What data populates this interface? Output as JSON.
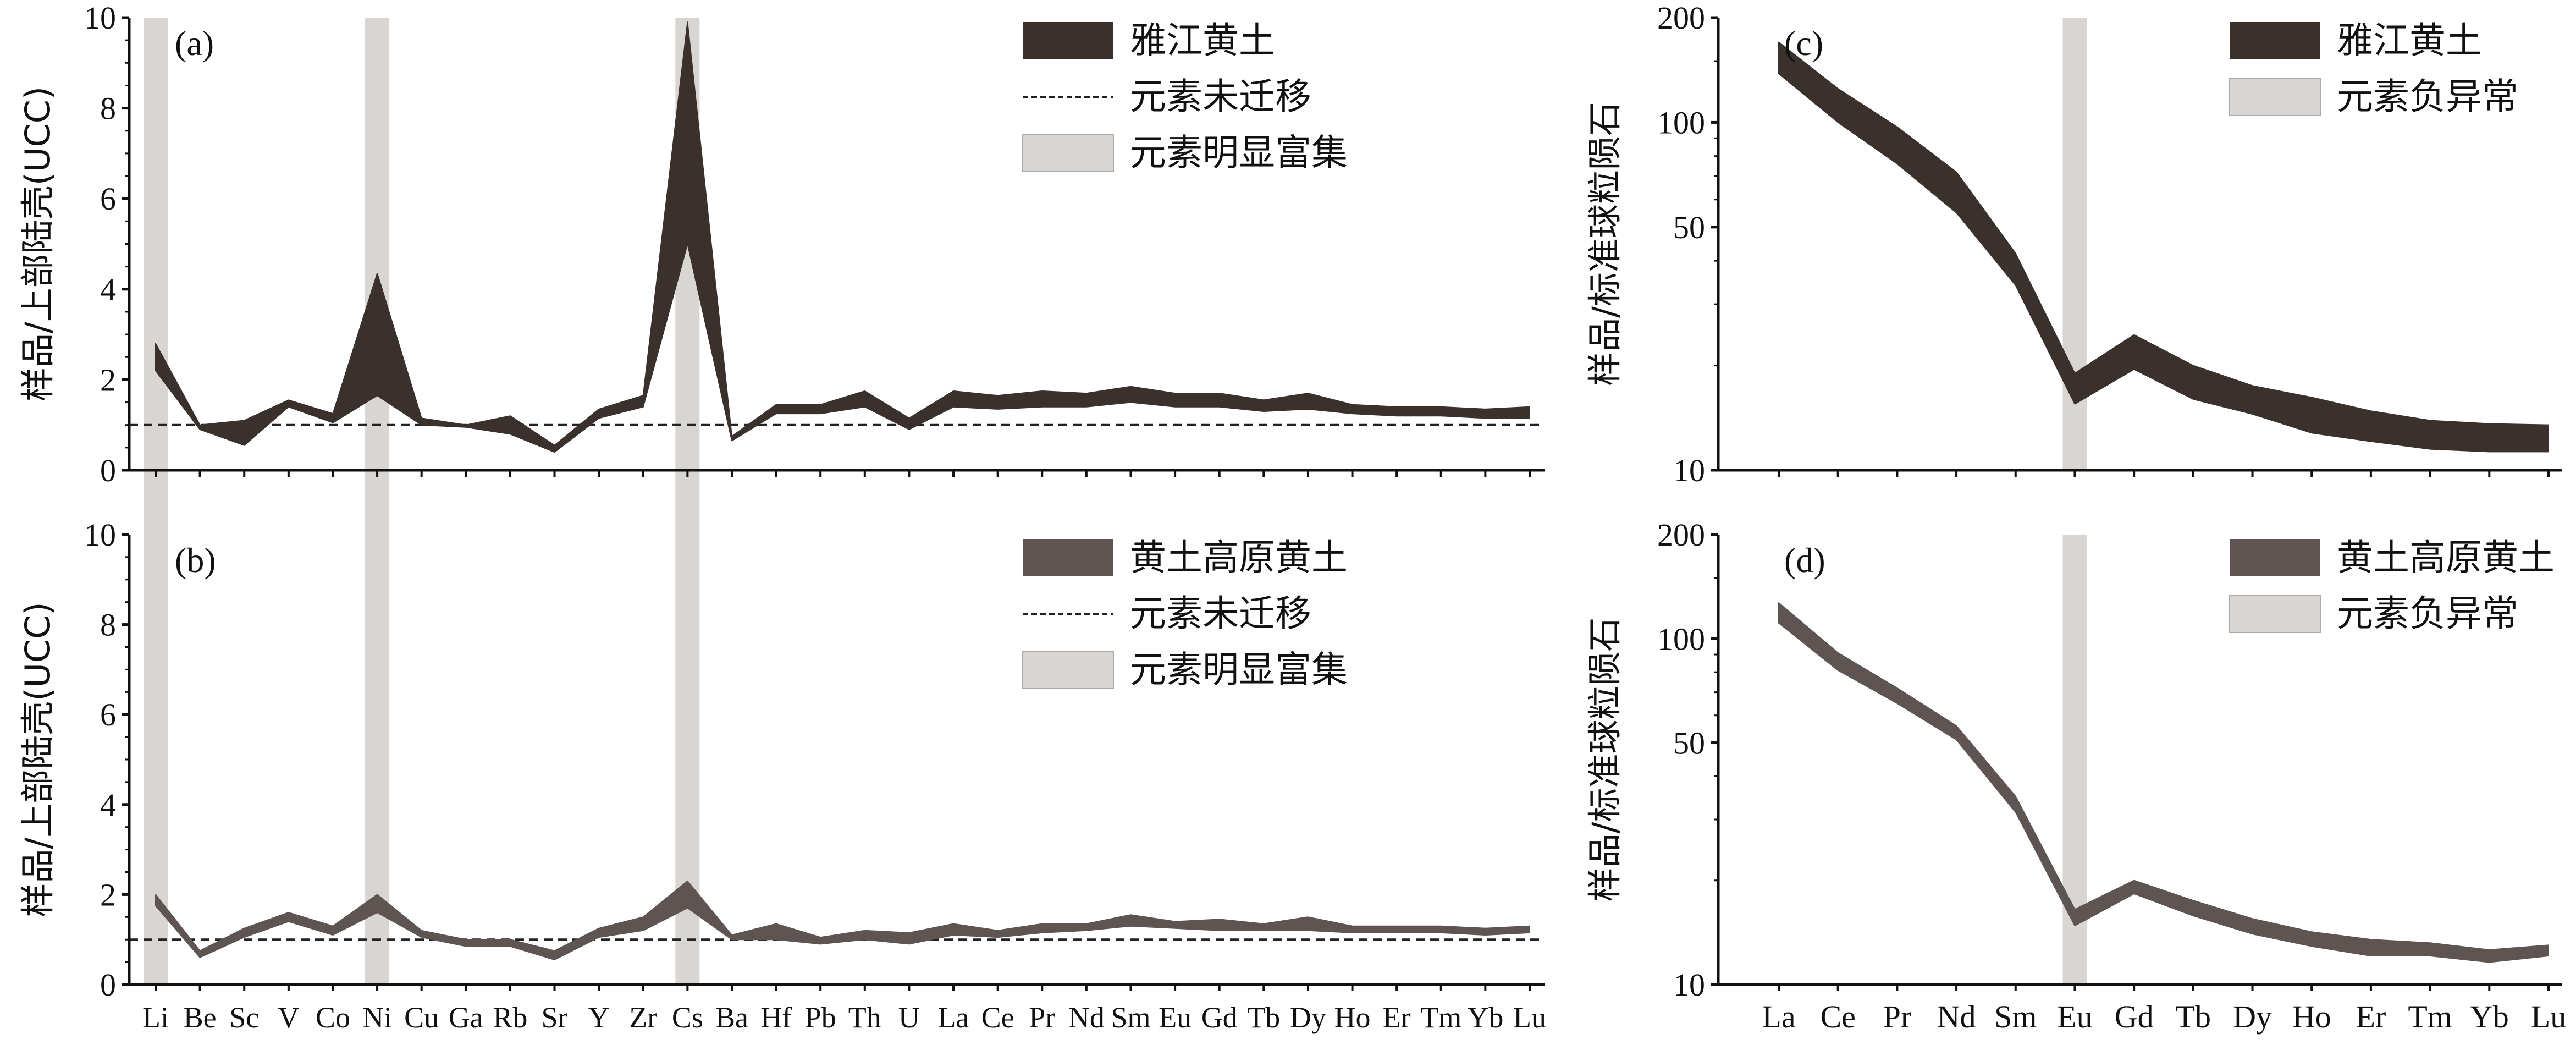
{
  "chart_data": [
    {
      "panel": "(a)",
      "type": "area",
      "ylabel": "样品/上部陆壳(UCC)",
      "ylim": [
        0,
        10
      ],
      "yticks": [
        "0",
        "2",
        "4",
        "6",
        "8",
        "10"
      ],
      "categories": [
        "Li",
        "Be",
        "Sc",
        "V",
        "Co",
        "Ni",
        "Cu",
        "Ga",
        "Rb",
        "Sr",
        "Y",
        "Zr",
        "Cs",
        "Ba",
        "Hf",
        "Pb",
        "Th",
        "U",
        "La",
        "Ce",
        "Pr",
        "Nd",
        "Sm",
        "Eu",
        "Gd",
        "Tb",
        "Dy",
        "Ho",
        "Er",
        "Tm",
        "Yb",
        "Lu"
      ],
      "series": [
        {
          "name": "雅江黄土",
          "color": "#3a302c",
          "upper": [
            2.8,
            1.0,
            1.1,
            1.55,
            1.25,
            4.35,
            1.15,
            1.0,
            1.2,
            0.55,
            1.35,
            1.65,
            9.9,
            0.75,
            1.45,
            1.45,
            1.75,
            1.15,
            1.75,
            1.65,
            1.75,
            1.7,
            1.85,
            1.7,
            1.7,
            1.55,
            1.7,
            1.45,
            1.4,
            1.4,
            1.35,
            1.4
          ],
          "lower": [
            2.2,
            0.9,
            0.55,
            1.4,
            1.05,
            1.65,
            1.0,
            0.95,
            0.8,
            0.4,
            1.15,
            1.4,
            5.0,
            0.65,
            1.25,
            1.25,
            1.4,
            0.9,
            1.4,
            1.35,
            1.4,
            1.4,
            1.5,
            1.4,
            1.4,
            1.3,
            1.35,
            1.25,
            1.2,
            1.2,
            1.15,
            1.15
          ]
        }
      ],
      "reference_line": {
        "label": "元素未迁移",
        "value": 1.0
      },
      "highlights": {
        "label": "元素明显富集",
        "elements": [
          "Li",
          "Ni",
          "Cs"
        ]
      },
      "legend": "top-right"
    },
    {
      "panel": "(b)",
      "type": "area",
      "ylabel": "样品/上部陆壳(UCC)",
      "ylim": [
        0,
        10
      ],
      "yticks": [
        "0",
        "2",
        "4",
        "6",
        "8",
        "10"
      ],
      "categories": [
        "Li",
        "Be",
        "Sc",
        "V",
        "Co",
        "Ni",
        "Cu",
        "Ga",
        "Rb",
        "Sr",
        "Y",
        "Zr",
        "Cs",
        "Ba",
        "Hf",
        "Pb",
        "Th",
        "U",
        "La",
        "Ce",
        "Pr",
        "Nd",
        "Sm",
        "Eu",
        "Gd",
        "Tb",
        "Dy",
        "Ho",
        "Er",
        "Tm",
        "Yb",
        "Lu"
      ],
      "series": [
        {
          "name": "黄土高原黄土",
          "color": "#5e5553",
          "upper": [
            2.0,
            0.75,
            1.25,
            1.6,
            1.3,
            2.0,
            1.2,
            1.0,
            1.0,
            0.75,
            1.25,
            1.5,
            2.3,
            1.1,
            1.35,
            1.05,
            1.2,
            1.15,
            1.35,
            1.2,
            1.35,
            1.35,
            1.55,
            1.4,
            1.45,
            1.35,
            1.5,
            1.3,
            1.3,
            1.3,
            1.25,
            1.3
          ],
          "lower": [
            1.75,
            0.6,
            1.05,
            1.4,
            1.1,
            1.6,
            1.05,
            0.85,
            0.85,
            0.55,
            1.05,
            1.2,
            1.7,
            1.0,
            1.0,
            0.9,
            1.0,
            0.9,
            1.1,
            1.05,
            1.15,
            1.2,
            1.3,
            1.25,
            1.2,
            1.2,
            1.2,
            1.15,
            1.15,
            1.15,
            1.1,
            1.15
          ]
        }
      ],
      "reference_line": {
        "label": "元素未迁移",
        "value": 1.0
      },
      "highlights": {
        "label": "元素明显富集",
        "elements": [
          "Li",
          "Ni",
          "Cs"
        ]
      },
      "legend": "top-right"
    },
    {
      "panel": "(c)",
      "type": "area",
      "ylabel": "样品/标准球粒陨石",
      "yscale": "log",
      "ylim": [
        10,
        200
      ],
      "yticks": [
        "10",
        "50",
        "100",
        "200"
      ],
      "categories": [
        "La",
        "Ce",
        "Pr",
        "Nd",
        "Sm",
        "Eu",
        "Gd",
        "Tb",
        "Dy",
        "Ho",
        "Er",
        "Tm",
        "Yb",
        "Lu"
      ],
      "series": [
        {
          "name": "雅江黄土",
          "color": "#3a302c",
          "upper": [
            170,
            125,
            97,
            72,
            42,
            19,
            24.5,
            20,
            17.5,
            16.2,
            14.8,
            13.9,
            13.6,
            13.5
          ],
          "lower": [
            138,
            100,
            76,
            55,
            34,
            15.5,
            19.5,
            16,
            14.5,
            12.8,
            12.1,
            11.5,
            11.3,
            11.3
          ]
        }
      ],
      "highlights": {
        "label": "元素负异常",
        "elements": [
          "Eu"
        ]
      },
      "legend": "top-right"
    },
    {
      "panel": "(d)",
      "type": "area",
      "ylabel": "样品/标准球粒陨石",
      "yscale": "log",
      "ylim": [
        10,
        200
      ],
      "yticks": [
        "10",
        "50",
        "100",
        "200"
      ],
      "categories": [
        "La",
        "Ce",
        "Pr",
        "Nd",
        "Sm",
        "Eu",
        "Gd",
        "Tb",
        "Dy",
        "Ho",
        "Er",
        "Tm",
        "Yb",
        "Lu"
      ],
      "series": [
        {
          "name": "黄土高原黄土",
          "color": "#5e5553",
          "upper": [
            127,
            91,
            72,
            56,
            35,
            16.5,
            20,
            17.5,
            15.5,
            14.2,
            13.5,
            13.2,
            12.6,
            13.0
          ],
          "lower": [
            111,
            81,
            65,
            51,
            31.5,
            14.8,
            18.3,
            15.8,
            14.0,
            12.9,
            12.1,
            12.1,
            11.6,
            12.1
          ]
        }
      ],
      "highlights": {
        "label": "元素负异常",
        "elements": [
          "Eu"
        ]
      },
      "legend": "top-right"
    }
  ]
}
